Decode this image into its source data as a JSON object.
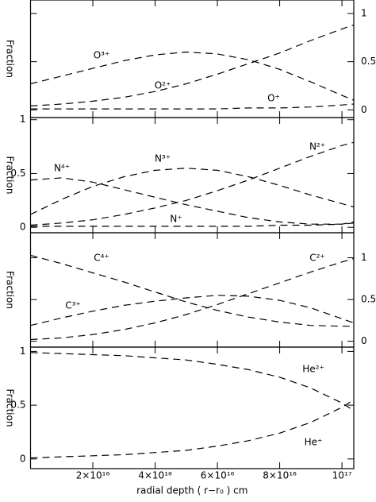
{
  "chart_data": [
    {
      "type": "line",
      "ylabel": "Fraction",
      "ytick_side": "right",
      "linestyle": "dashed",
      "xlim": [
        0,
        1.038e+17
      ],
      "xticks": [
        2e+16,
        4e+16,
        6e+16,
        8e+16,
        1e+17
      ],
      "ylim": [
        -0.08,
        1.14
      ],
      "yticks": [
        0,
        0.5,
        1
      ],
      "x": [
        0,
        1e+16,
        2e+16,
        3e+16,
        4e+16,
        5e+16,
        6e+16,
        7e+16,
        8e+16,
        9e+16,
        1e+17,
        1.038e+17
      ],
      "series": [
        {
          "name": "O³⁺",
          "color": "#000000",
          "values": [
            0.27,
            0.35,
            0.43,
            0.51,
            0.57,
            0.6,
            0.58,
            0.52,
            0.42,
            0.29,
            0.15,
            0.1
          ]
        },
        {
          "name": "O²⁺",
          "color": "#000000",
          "values": [
            0.04,
            0.06,
            0.09,
            0.13,
            0.19,
            0.27,
            0.37,
            0.48,
            0.59,
            0.72,
            0.84,
            0.88
          ]
        },
        {
          "name": "O⁺",
          "color": "#000000",
          "values": [
            0.01,
            0.01,
            0.01,
            0.01,
            0.01,
            0.01,
            0.01,
            0.02,
            0.02,
            0.03,
            0.05,
            0.06
          ]
        }
      ]
    },
    {
      "type": "line",
      "ylabel": "Fraction",
      "ytick_side": "left",
      "linestyle": "dashed",
      "xlim": [
        0,
        1.038e+17
      ],
      "xticks": [
        2e+16,
        4e+16,
        6e+16,
        8e+16,
        1e+17
      ],
      "ylim": [
        -0.05,
        1.02
      ],
      "yticks": [
        0,
        0.5,
        1
      ],
      "x": [
        0,
        1e+16,
        2e+16,
        3e+16,
        4e+16,
        5e+16,
        6e+16,
        7e+16,
        8e+16,
        9e+16,
        1e+17,
        1.038e+17
      ],
      "series": [
        {
          "name": "N⁴⁺",
          "color": "#000000",
          "values": [
            0.44,
            0.46,
            0.42,
            0.35,
            0.28,
            0.21,
            0.15,
            0.09,
            0.05,
            0.03,
            0.03,
            0.04
          ]
        },
        {
          "name": "N³⁺",
          "color": "#000000",
          "values": [
            0.12,
            0.26,
            0.38,
            0.47,
            0.53,
            0.55,
            0.53,
            0.47,
            0.39,
            0.3,
            0.22,
            0.19
          ]
        },
        {
          "name": "N²⁺",
          "color": "#000000",
          "values": [
            0.02,
            0.04,
            0.07,
            0.12,
            0.18,
            0.25,
            0.34,
            0.44,
            0.55,
            0.66,
            0.76,
            0.79
          ]
        },
        {
          "name": "N⁺",
          "color": "#000000",
          "values": [
            0.01,
            0.01,
            0.01,
            0.01,
            0.01,
            0.01,
            0.01,
            0.01,
            0.02,
            0.02,
            0.03,
            0.05
          ]
        }
      ]
    },
    {
      "type": "line",
      "ylabel": "Fraction",
      "ytick_side": "right",
      "linestyle": "dashed",
      "xlim": [
        0,
        1.038e+17
      ],
      "xticks": [
        2e+16,
        4e+16,
        6e+16,
        8e+16,
        1e+17
      ],
      "ylim": [
        -0.07,
        1.3
      ],
      "yticks": [
        0,
        0.5,
        1
      ],
      "x": [
        0,
        1e+16,
        2e+16,
        3e+16,
        4e+16,
        5e+16,
        6e+16,
        7e+16,
        8e+16,
        9e+16,
        1e+17,
        1.038e+17
      ],
      "series": [
        {
          "name": "C⁴⁺",
          "color": "#000000",
          "values": [
            1.03,
            0.93,
            0.82,
            0.71,
            0.59,
            0.47,
            0.37,
            0.29,
            0.23,
            0.19,
            0.18,
            0.18
          ]
        },
        {
          "name": "C³⁺",
          "color": "#000000",
          "values": [
            0.19,
            0.28,
            0.36,
            0.43,
            0.48,
            0.52,
            0.55,
            0.54,
            0.49,
            0.4,
            0.27,
            0.22
          ]
        },
        {
          "name": "C²⁺",
          "color": "#000000",
          "values": [
            0.02,
            0.04,
            0.08,
            0.14,
            0.22,
            0.32,
            0.44,
            0.57,
            0.7,
            0.83,
            0.95,
            0.99
          ]
        }
      ]
    },
    {
      "type": "line",
      "ylabel": "Fraction",
      "ytick_side": "left",
      "linestyle": "dashed",
      "xlabel": "radial depth ( r−r₀ ) cm",
      "xlim": [
        0,
        1.038e+17
      ],
      "xticks": [
        {
          "value": 2e+16,
          "label": "2×10¹⁶"
        },
        {
          "value": 4e+16,
          "label": "4×10¹⁶"
        },
        {
          "value": 6e+16,
          "label": "6×10¹⁶"
        },
        {
          "value": 8e+16,
          "label": "8×10¹⁶"
        },
        {
          "value": 1e+17,
          "label": "10¹⁷"
        }
      ],
      "ylim": [
        -0.09,
        1.04
      ],
      "yticks": [
        0,
        0.5,
        1
      ],
      "x": [
        0,
        1e+16,
        2e+16,
        3e+16,
        4e+16,
        5e+16,
        6e+16,
        7e+16,
        8e+16,
        9e+16,
        1e+17,
        1.038e+17
      ],
      "series": [
        {
          "name": "He²⁺",
          "color": "#000000",
          "values": [
            0.99,
            0.98,
            0.97,
            0.96,
            0.94,
            0.92,
            0.88,
            0.83,
            0.76,
            0.66,
            0.52,
            0.45
          ]
        },
        {
          "name": "He⁺",
          "color": "#000000",
          "values": [
            0.01,
            0.02,
            0.03,
            0.04,
            0.06,
            0.08,
            0.12,
            0.17,
            0.24,
            0.34,
            0.48,
            0.55
          ]
        }
      ]
    }
  ]
}
